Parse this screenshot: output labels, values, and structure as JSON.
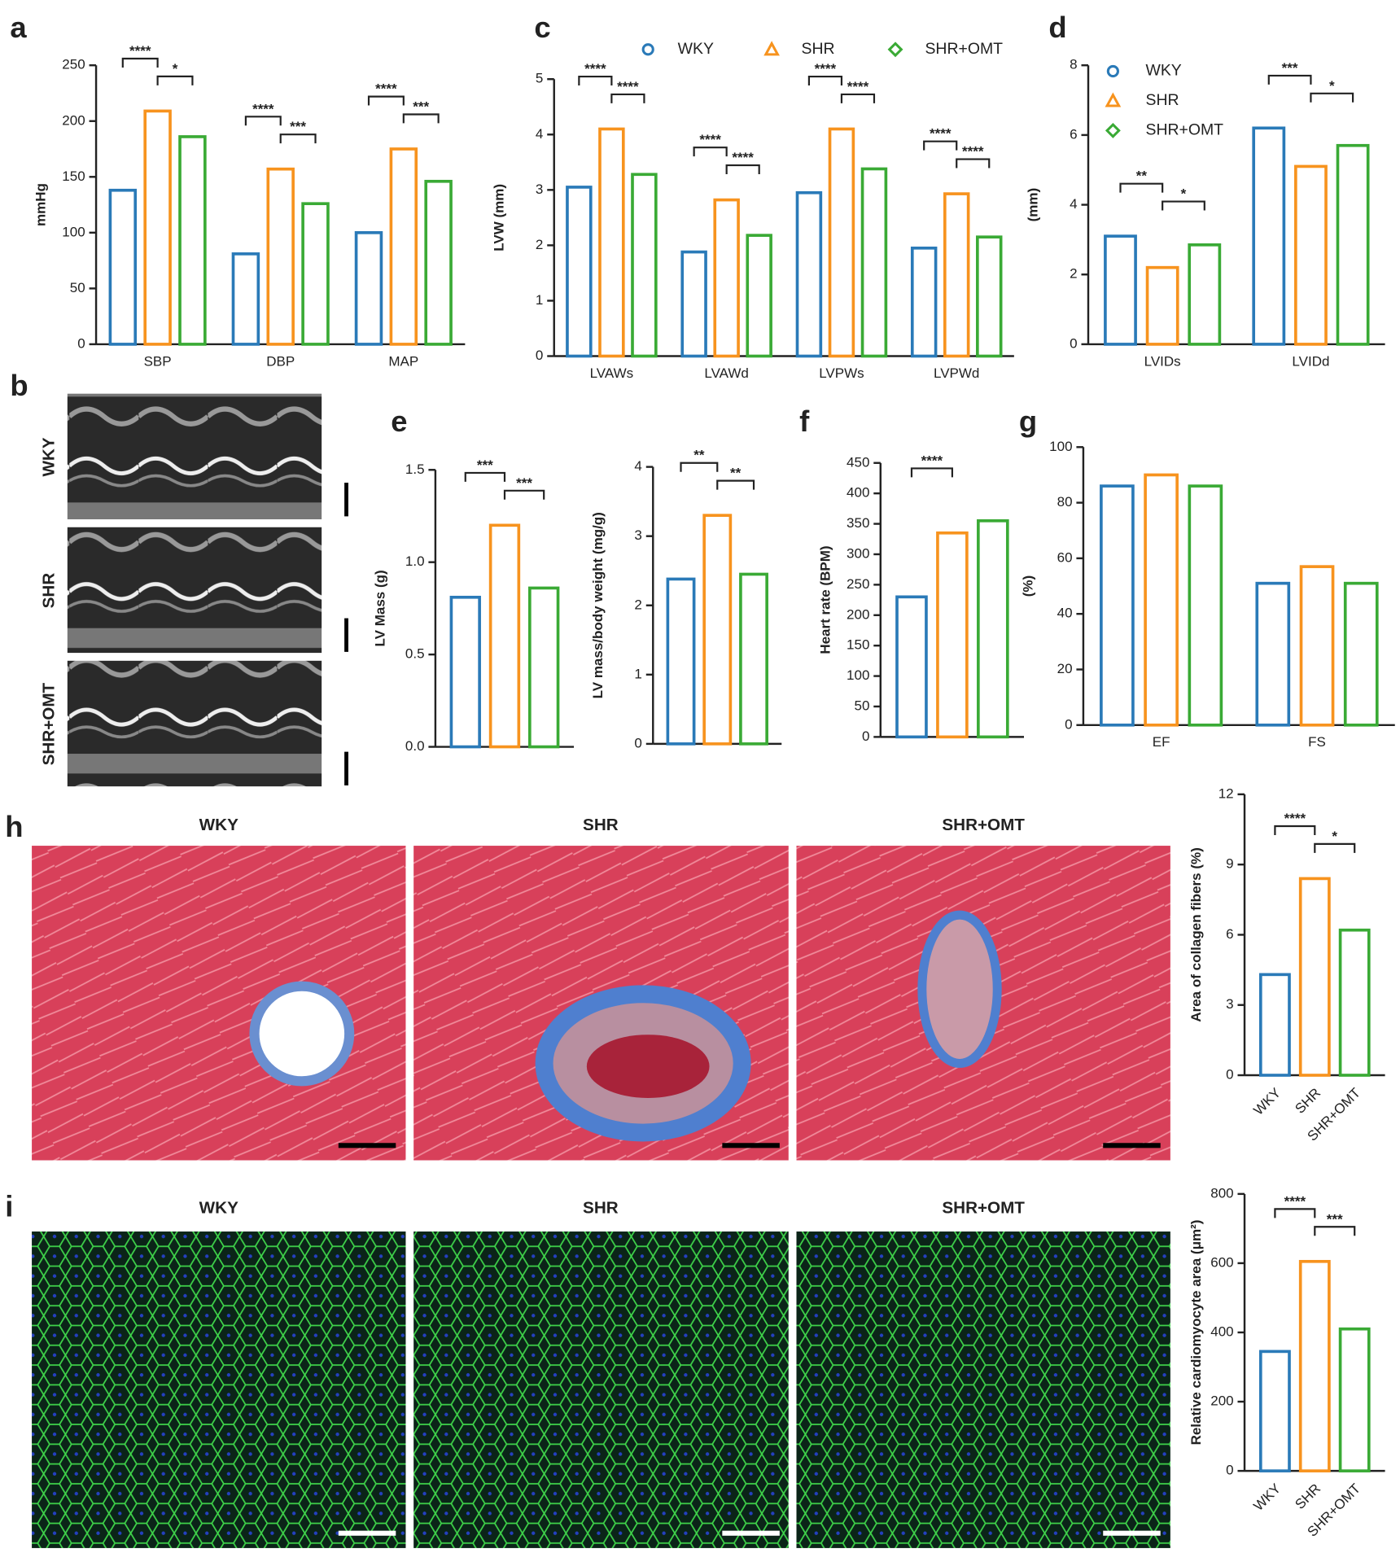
{
  "panel_letters": [
    "a",
    "b",
    "c",
    "d",
    "e",
    "f",
    "g",
    "h",
    "i"
  ],
  "images": {
    "b": {
      "rows": [
        "WKY",
        "SHR",
        "SHR+OMT"
      ]
    },
    "h": {
      "titles": [
        "WKY",
        "SHR",
        "SHR+OMT"
      ]
    },
    "i": {
      "titles": [
        "WKY",
        "SHR",
        "SHR+OMT"
      ]
    }
  },
  "chart_data": [
    {
      "type": "bar",
      "ylabel": "mmHg",
      "categories": [
        "SBP",
        "DBP",
        "MAP"
      ],
      "series": [
        {
          "color": "#2a7ab8",
          "values": [
            138,
            81,
            100
          ]
        },
        {
          "color": "#f7931e",
          "values": [
            209,
            157,
            175
          ]
        },
        {
          "color": "#3aaa35",
          "values": [
            186,
            126,
            146
          ]
        }
      ],
      "ylim": [
        0,
        250
      ],
      "yticks": [
        0,
        50,
        100,
        150,
        200,
        250
      ],
      "comparisons": [
        [
          "****",
          "*"
        ],
        [
          "****",
          "***"
        ],
        [
          "****",
          "***"
        ]
      ]
    },
    {
      "type": "bar",
      "ylabel": "LVW (mm)",
      "categories": [
        "LVAWs",
        "LVAWd",
        "LVPWs",
        "LVPWd"
      ],
      "series": [
        {
          "name": "WKY",
          "color": "#2a7ab8",
          "values": [
            3.05,
            1.88,
            2.95,
            1.95
          ]
        },
        {
          "name": "SHR",
          "color": "#f7931e",
          "values": [
            4.1,
            2.82,
            4.1,
            2.93
          ]
        },
        {
          "name": "SHR+OMT",
          "color": "#3aaa35",
          "values": [
            3.28,
            2.18,
            3.38,
            2.15
          ]
        }
      ],
      "ylim": [
        0,
        5
      ],
      "yticks": [
        0,
        1,
        2,
        3,
        4,
        5
      ],
      "legend": "top",
      "comparisons": [
        [
          "****",
          "****"
        ],
        [
          "****",
          "****"
        ],
        [
          "****",
          "****"
        ],
        [
          "****",
          "****"
        ]
      ]
    },
    {
      "type": "bar",
      "ylabel": "(mm)",
      "categories": [
        "LVIDs",
        "LVIDd"
      ],
      "series": [
        {
          "name": "WKY",
          "color": "#2a7ab8",
          "values": [
            3.1,
            6.2
          ]
        },
        {
          "name": "SHR",
          "color": "#f7931e",
          "values": [
            2.2,
            5.1
          ]
        },
        {
          "name": "SHR+OMT",
          "color": "#3aaa35",
          "values": [
            2.85,
            5.7
          ]
        }
      ],
      "ylim": [
        0,
        8
      ],
      "yticks": [
        0,
        2,
        4,
        6,
        8
      ],
      "legend": "upper left",
      "comparisons": [
        [
          "**",
          "*"
        ],
        [
          "***",
          "*"
        ]
      ]
    },
    {
      "type": "bar",
      "ylabel": "LV Mass (g)",
      "categories": [
        null
      ],
      "series": [
        {
          "color": "#2a7ab8",
          "values": [
            0.81
          ]
        },
        {
          "color": "#f7931e",
          "values": [
            1.2
          ]
        },
        {
          "color": "#3aaa35",
          "values": [
            0.86
          ]
        }
      ],
      "ylim": [
        0,
        1.5
      ],
      "yticks": [
        {
          "value": 0,
          "label": "0.0"
        },
        0.5,
        {
          "value": 1,
          "label": "1.0"
        },
        1.5
      ],
      "comparisons": [
        [
          "***",
          "***"
        ]
      ]
    },
    {
      "type": "bar",
      "ylabel": "LV mass/body weight (mg/g)",
      "categories": [
        null
      ],
      "series": [
        {
          "color": "#2a7ab8",
          "values": [
            2.38
          ]
        },
        {
          "color": "#f7931e",
          "values": [
            3.3
          ]
        },
        {
          "color": "#3aaa35",
          "values": [
            2.45
          ]
        }
      ],
      "ylim": [
        0,
        4
      ],
      "yticks": [
        0,
        1,
        2,
        3,
        4
      ],
      "comparisons": [
        [
          "**",
          "**"
        ]
      ]
    },
    {
      "type": "bar",
      "ylabel": "Heart rate (BPM)",
      "categories": [
        null
      ],
      "series": [
        {
          "color": "#2a7ab8",
          "values": [
            230
          ]
        },
        {
          "color": "#f7931e",
          "values": [
            335
          ]
        },
        {
          "color": "#3aaa35",
          "values": [
            355
          ]
        }
      ],
      "ylim": [
        0,
        450
      ],
      "yticks": [
        0,
        50,
        100,
        150,
        200,
        250,
        300,
        350,
        400,
        450
      ],
      "comparisons": [
        [
          "****"
        ]
      ]
    },
    {
      "type": "bar",
      "ylabel": "(%)",
      "categories": [
        "EF",
        "FS"
      ],
      "series": [
        {
          "color": "#2a7ab8",
          "values": [
            86,
            51
          ]
        },
        {
          "color": "#f7931e",
          "values": [
            90,
            57
          ]
        },
        {
          "color": "#3aaa35",
          "values": [
            86,
            51
          ]
        }
      ],
      "ylim": [
        0,
        100
      ],
      "yticks": [
        0,
        20,
        40,
        60,
        80,
        100
      ]
    },
    {
      "type": "bar",
      "ylabel": "Area of collagen fibers (%)",
      "categories": [
        null
      ],
      "series_labels_on_axis": true,
      "series": [
        {
          "name": "WKY",
          "color": "#2a7ab8",
          "values": [
            4.3
          ]
        },
        {
          "name": "SHR",
          "color": "#f7931e",
          "values": [
            8.4
          ]
        },
        {
          "name": "SHR+OMT",
          "color": "#3aaa35",
          "values": [
            6.2
          ]
        }
      ],
      "ylim": [
        0,
        12
      ],
      "yticks": [
        0,
        3,
        6,
        9,
        12
      ],
      "comparisons": [
        [
          "****",
          "*"
        ]
      ]
    },
    {
      "type": "bar",
      "ylabel": "Relative cardiomyocyte area (μm²)",
      "categories": [
        null
      ],
      "series_labels_on_axis": true,
      "series": [
        {
          "name": "WKY",
          "color": "#2a7ab8",
          "values": [
            345
          ]
        },
        {
          "name": "SHR",
          "color": "#f7931e",
          "values": [
            605
          ]
        },
        {
          "name": "SHR+OMT",
          "color": "#3aaa35",
          "values": [
            410
          ]
        }
      ],
      "ylim": [
        0,
        800
      ],
      "yticks": [
        0,
        200,
        400,
        600,
        800
      ],
      "comparisons": [
        [
          "****",
          "***"
        ]
      ]
    }
  ]
}
